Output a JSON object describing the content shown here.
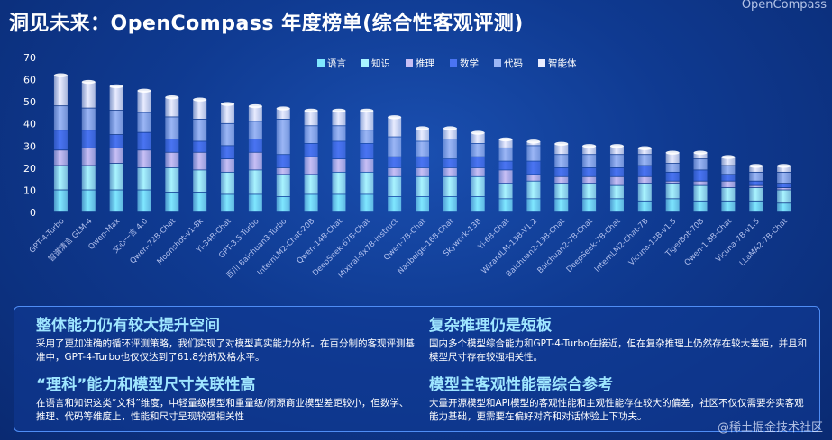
{
  "header": {
    "title": "洞见未来：OpenCompass 年度榜单(综合性客观评测)",
    "brand": "OpenCompass"
  },
  "colors": {
    "语言": "#7fe7ff",
    "知识": "#a9f4ff",
    "推理": "#c8bff5",
    "数学": "#4a74f2",
    "代码": "#9bb6f5",
    "智能体": "#e9ecff"
  },
  "chart_data": {
    "type": "bar",
    "stacked": true,
    "ylim": [
      0,
      70
    ],
    "yticks": [
      0,
      10,
      20,
      30,
      40,
      50,
      60,
      70
    ],
    "legend_position": "top-center",
    "grid": false,
    "categories": [
      "GPT-4-Turbo",
      "智谱清言 GLM-4",
      "Qwen-Max",
      "文心一言 4.0",
      "Qwen-72B-Chat",
      "Moonshot-v1-8k",
      "Yi-34B-Chat",
      "GPT-3.5-Turbo",
      "百川 Baichuan3-Turbo",
      "InternLM2-Chat-20B",
      "Qwen-14B-Chat",
      "DeepSeek-67B-Chat",
      "Mixtral-8x7B-Instruct",
      "Qwen-7B-Chat",
      "Nanbeige-16B-Chat",
      "Skywork-13B",
      "Yi-6B-Chat",
      "WizardLM-13B-V1.2",
      "Baichuan2-13B-Chat",
      "Baichuan2-7B-Chat",
      "DeepSeek-7B-Chat",
      "InternLM2-Chat-7B",
      "Vicuna-13B-v1.5",
      "TigerBot-70B",
      "Qwen-1.8B-Chat",
      "Vicuna-7B-v1.5",
      "LLaMA2-7B-Chat"
    ],
    "series": [
      {
        "name": "语言",
        "values": [
          10,
          10,
          10,
          10,
          9,
          9,
          8,
          8,
          7,
          8,
          8,
          8,
          7,
          7,
          7,
          7,
          6,
          6,
          6,
          6,
          6,
          5,
          6,
          5,
          5,
          5,
          4
        ]
      },
      {
        "name": "知识",
        "values": [
          11,
          11,
          12,
          10,
          11,
          10,
          10,
          11,
          10,
          9,
          10,
          10,
          9,
          9,
          9,
          9,
          7,
          8,
          7,
          7,
          6,
          8,
          7,
          7,
          6,
          6,
          6
        ]
      },
      {
        "name": "推理",
        "values": [
          7,
          8,
          7,
          8,
          7,
          8,
          6,
          8,
          3,
          8,
          6,
          6,
          4,
          4,
          4,
          4,
          6,
          3,
          3,
          3,
          4,
          3,
          1,
          2,
          3,
          1,
          1
        ]
      },
      {
        "name": "数学",
        "values": [
          9,
          8,
          6,
          8,
          6,
          5,
          6,
          6,
          6,
          6,
          8,
          7,
          5,
          5,
          4,
          5,
          4,
          6,
          4,
          4,
          4,
          5,
          4,
          5,
          3,
          2,
          2
        ]
      },
      {
        "name": "代码",
        "values": [
          11,
          10,
          11,
          9,
          10,
          10,
          10,
          8,
          16,
          8,
          7,
          6,
          9,
          7,
          9,
          6,
          6,
          7,
          6,
          6,
          6,
          5,
          4,
          5,
          4,
          4,
          5
        ]
      },
      {
        "name": "智能体",
        "values": [
          14,
          12,
          11,
          10,
          9,
          9,
          9,
          7,
          5,
          7,
          7,
          9,
          9,
          6,
          5,
          5,
          4,
          2,
          5,
          4,
          4,
          3,
          5,
          3,
          4,
          3,
          3
        ]
      }
    ]
  },
  "panel": {
    "blocks": [
      {
        "heading": "整体能力仍有较大提升空间",
        "text": "采用了更加准确的循环评测策略，我们实现了对模型真实能力分析。在百分制的客观评测基准中，GPT-4-Turbo也仅仅达到了61.8分的及格水平。"
      },
      {
        "heading": "复杂推理仍是短板",
        "text": "国内多个模型综合能力和GPT-4-Turbo在接近，但在复杂推理上仍然存在较大差距，并且和模型尺寸存在较强相关性。"
      },
      {
        "heading": "“理科”能力和模型尺寸关联性高",
        "text": "在语言和知识这类“文科”维度，中轻量级模型和重量级/闭源商业模型差距较小，但数学、推理、代码等维度上，性能和尺寸呈现较强相关性"
      },
      {
        "heading": "模型主客观性能需综合参考",
        "text": "大量开源模型和API模型的客观性能和主观性能存在较大的偏差，社区不仅仅需要夯实客观能力基础，更需要在偏好对齐和对话体验上下功夫。"
      }
    ]
  },
  "watermark": "@稀土掘金技术社区"
}
